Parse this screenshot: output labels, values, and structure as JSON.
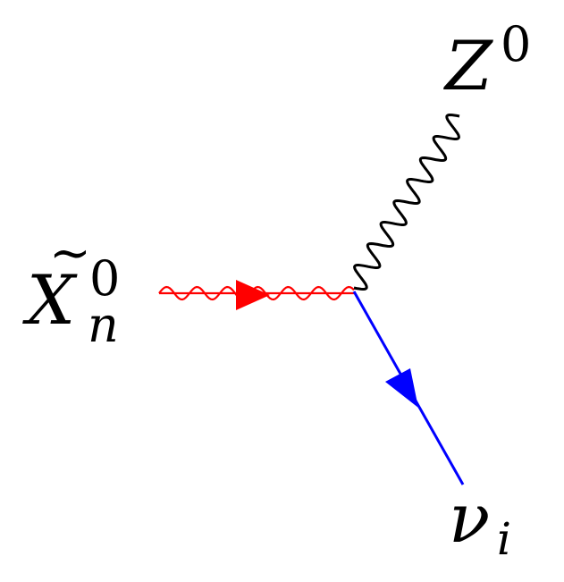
{
  "diagram": {
    "kind": "feynman-vertex",
    "particles": {
      "incoming": {
        "symbol": "X",
        "accent": "~",
        "superscript": "0",
        "subscript": "n",
        "line_style": "wavy-with-fermion-arrow",
        "color": "#ff0000"
      },
      "boson": {
        "symbol": "Z",
        "superscript": "0",
        "line_style": "wavy",
        "color": "#000000"
      },
      "outgoing": {
        "symbol": "ν",
        "subscript": "i",
        "line_style": "straight-with-arrow",
        "color": "#0000ff"
      }
    }
  }
}
